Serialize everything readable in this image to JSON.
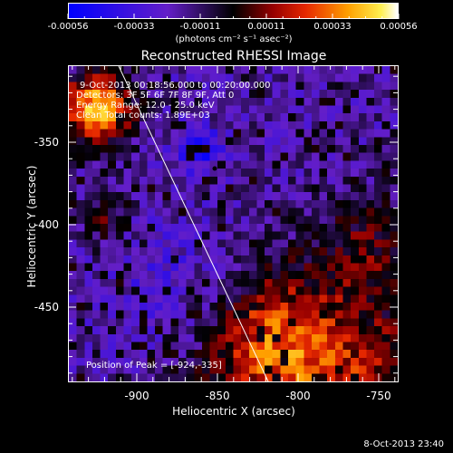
{
  "colorbar": {
    "tick_labels": [
      "-0.00056",
      "-0.00033",
      "-0.00011",
      "0.00011",
      "0.00033",
      "0.00056"
    ],
    "unit_label": "(photons cm⁻² s⁻¹ asec⁻²)",
    "range": [
      -0.00056,
      0.00056
    ]
  },
  "plot": {
    "title": "Reconstructed RHESSI Image",
    "info_lines": [
      "9-Oct-2013 00:18:56.000 to 00:20:00.000",
      "Detectors: 3F 5F 6F 7F 8F 9F, Att 0",
      "Energy Range: 12.0 - 25.0 keV",
      "Clean   Total counts: 1.89E+03"
    ],
    "peak_label": "Position of Peak = [-924,-335]",
    "x_axis_label": "Heliocentric X (arcsec)",
    "y_axis_label": "Heliocentric Y (arcsec)",
    "x_ticks": [
      "-900",
      "-850",
      "-800",
      "-750"
    ],
    "y_ticks": [
      "-350",
      "-400",
      "-450"
    ],
    "x_range": [
      -945,
      -740
    ],
    "y_range": [
      -305,
      -500
    ],
    "colors": {
      "limb_line": "#ffffff",
      "background": "#000000"
    }
  },
  "footer": {
    "date": "8-Oct-2013 23:40"
  }
}
